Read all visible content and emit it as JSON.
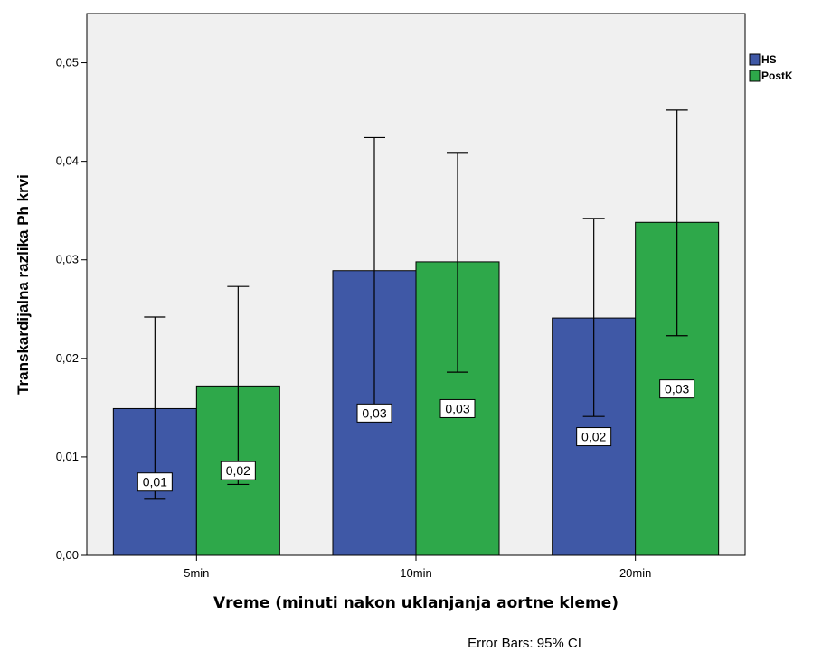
{
  "chart_data": {
    "type": "bar",
    "xlabel": "Vreme (minuti nakon uklanjanja aortne kleme)",
    "ylabel": "Transkardijalna razlika Ph krvi",
    "categories": [
      "5min",
      "10min",
      "20min"
    ],
    "ylim": [
      0,
      0.055
    ],
    "yticks": [
      0,
      0.01,
      0.02,
      0.03,
      0.04,
      0.05
    ],
    "ytick_labels": [
      "0,00",
      "0,01",
      "0,02",
      "0,03",
      "0,04",
      "0,05"
    ],
    "grid": false,
    "legend_position": "top-right",
    "series": [
      {
        "name": "HS",
        "color": "#3f58a6",
        "values": [
          0.0149,
          0.0289,
          0.0241
        ],
        "ci_low": [
          0.0057,
          0.0153,
          0.0141
        ],
        "ci_high": [
          0.0242,
          0.0424,
          0.0342
        ],
        "data_labels": [
          "0,01",
          "0,03",
          "0,02"
        ]
      },
      {
        "name": "PostK",
        "color": "#2ea84a",
        "values": [
          0.0172,
          0.0298,
          0.0338
        ],
        "ci_low": [
          0.0072,
          0.0186,
          0.0223
        ],
        "ci_high": [
          0.0273,
          0.0409,
          0.0452
        ],
        "data_labels": [
          "0,02",
          "0,03",
          "0,03"
        ]
      }
    ],
    "footnote": "Error Bars: 95% CI"
  }
}
